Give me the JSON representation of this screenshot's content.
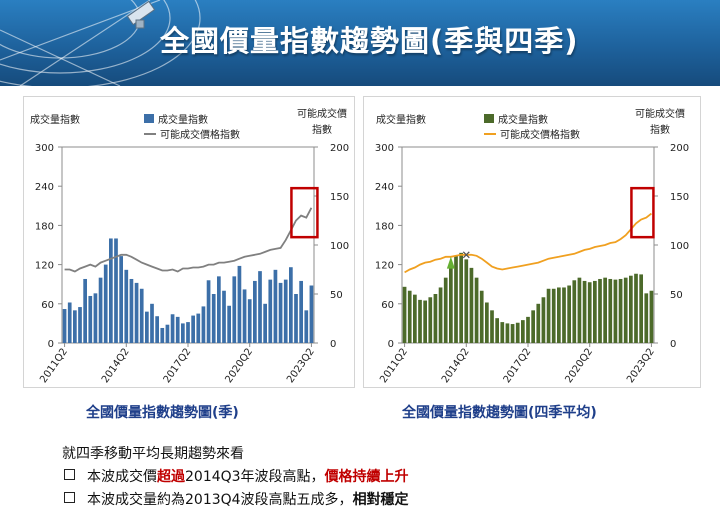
{
  "slide": {
    "title": "全國價量指數趨勢圖(季與四季)"
  },
  "colors": {
    "bar_left": "#3c6fa8",
    "bar_right": "#4c6a2a",
    "line_left": "#808080",
    "line_right": "#f0a020",
    "highlight": "#c00000",
    "caption": "#1f3f8a",
    "banner": "#1d5f99"
  },
  "chart_data": [
    {
      "type": "bar",
      "caption": "全國價量指數趨勢圖(季)",
      "legend": {
        "volume": "成交量指數",
        "price": "可能成交價格指數",
        "placement": "top-center"
      },
      "ylabel_left": "成交量指數",
      "ylabel_right_1": "可能成交價",
      "ylabel_right_2": "指數",
      "ylim_left": [
        0,
        300
      ],
      "ylim_right": [
        0,
        200
      ],
      "yticks_left": [
        "0",
        "60",
        "120",
        "180",
        "240",
        "300"
      ],
      "yticks_right": [
        "0",
        "50",
        "100",
        "150",
        "200"
      ],
      "xtick_labels": [
        "2011Q2",
        "2014Q2",
        "2017Q2",
        "2020Q2",
        "2023Q2"
      ],
      "volume": [
        52,
        62,
        50,
        55,
        98,
        72,
        76,
        100,
        120,
        160,
        160,
        133,
        112,
        98,
        92,
        83,
        48,
        60,
        41,
        23,
        28,
        44,
        40,
        30,
        32,
        42,
        45,
        56,
        96,
        75,
        102,
        80,
        57,
        102,
        118,
        82,
        67,
        95,
        110,
        60,
        97,
        112,
        92,
        97,
        116,
        75,
        95,
        50,
        88
      ],
      "price": [
        75,
        75,
        73,
        76,
        78,
        80,
        78,
        82,
        84,
        86,
        88,
        90,
        90,
        88,
        85,
        82,
        80,
        78,
        76,
        74,
        74,
        75,
        73,
        76,
        76,
        77,
        77,
        78,
        80,
        80,
        82,
        82,
        83,
        84,
        86,
        88,
        89,
        90,
        91,
        93,
        95,
        96,
        97,
        105,
        115,
        125,
        130,
        128,
        138
      ]
    },
    {
      "type": "bar",
      "caption": "全國價量指數趨勢圖(四季平均)",
      "legend": {
        "volume": "成交量指數",
        "price": "可能成交價格指數",
        "placement": "top-center"
      },
      "ylabel_left": "成交量指數",
      "ylabel_right_1": "可能成交價",
      "ylabel_right_2": "指數",
      "ylim_left": [
        0,
        300
      ],
      "ylim_right": [
        0,
        200
      ],
      "yticks_left": [
        "0",
        "60",
        "120",
        "180",
        "240",
        "300"
      ],
      "yticks_right": [
        "0",
        "50",
        "100",
        "150",
        "200"
      ],
      "xtick_labels": [
        "2011Q2",
        "2014Q2",
        "2017Q2",
        "2020Q2",
        "2023Q2"
      ],
      "volume": [
        86,
        80,
        74,
        66,
        65,
        70,
        75,
        85,
        100,
        120,
        133,
        138,
        128,
        115,
        100,
        80,
        62,
        50,
        38,
        32,
        30,
        29,
        31,
        35,
        40,
        50,
        60,
        70,
        83,
        83,
        85,
        85,
        88,
        96,
        100,
        95,
        93,
        95,
        98,
        100,
        98,
        97,
        98,
        100,
        103,
        106,
        105,
        76,
        80
      ],
      "price": [
        72,
        75,
        77,
        80,
        82,
        83,
        85,
        86,
        88,
        88,
        89,
        90,
        90,
        90,
        89,
        86,
        82,
        78,
        76,
        75,
        76,
        77,
        78,
        79,
        80,
        81,
        82,
        84,
        86,
        87,
        88,
        89,
        90,
        91,
        93,
        95,
        96,
        98,
        99,
        100,
        102,
        103,
        106,
        110,
        116,
        122,
        126,
        128,
        132
      ]
    }
  ],
  "notes": {
    "intro": "就四季移動平均長期趨勢來看",
    "line1": {
      "pre": "本波成交價",
      "hl1": "超過",
      "mid": "2014Q3年波段高點，",
      "hl2": "價格持續上升"
    },
    "line2": {
      "pre": "本波成交量約為2013Q4波段高點五成多，",
      "bold": "相對穩定"
    }
  }
}
